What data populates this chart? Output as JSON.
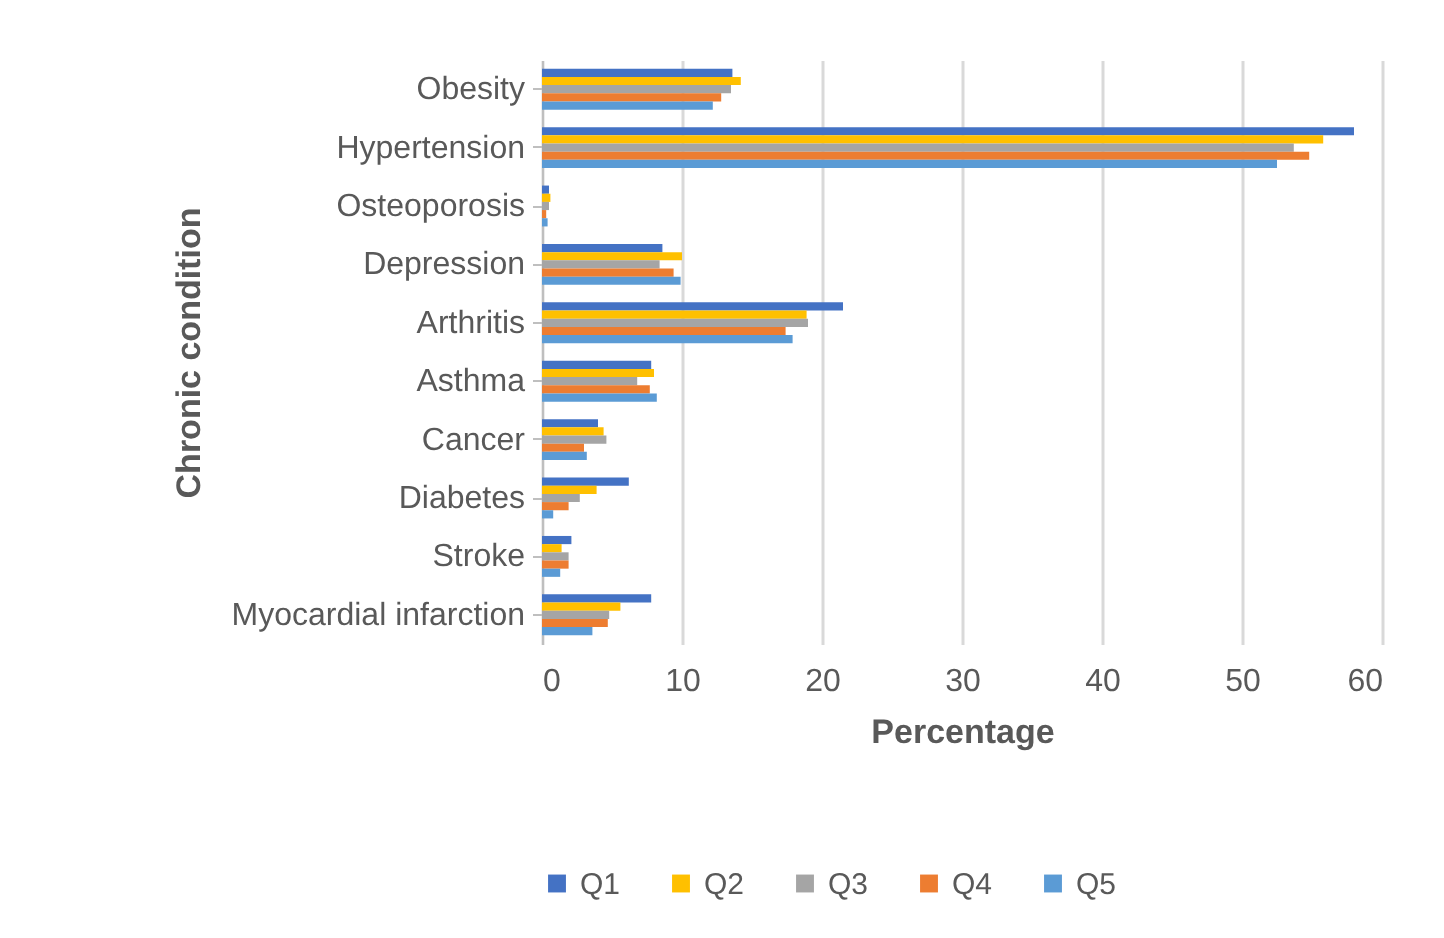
{
  "chart_data": {
    "type": "bar",
    "orientation": "horizontal",
    "xlabel": "Percentage",
    "ylabel": "Chronic condition",
    "categories": [
      "Obesity",
      "Hypertension",
      "Osteoporosis",
      "Depression",
      "Arthritis",
      "Asthma",
      "Cancer",
      "Diabetes",
      "Stroke",
      "Myocardial infarction"
    ],
    "series": [
      {
        "name": "Q1",
        "color": "#4472c4",
        "values": [
          13.6,
          58.0,
          0.5,
          8.6,
          21.5,
          7.8,
          4.0,
          6.2,
          2.1,
          7.8
        ]
      },
      {
        "name": "Q2",
        "color": "#ffc000",
        "values": [
          14.2,
          55.8,
          0.6,
          10.0,
          18.9,
          8.0,
          4.4,
          3.9,
          1.4,
          5.6
        ]
      },
      {
        "name": "Q3",
        "color": "#a5a5a5",
        "values": [
          13.5,
          53.7,
          0.5,
          8.4,
          19.0,
          6.8,
          4.6,
          2.7,
          1.9,
          4.8
        ]
      },
      {
        "name": "Q4",
        "color": "#ed7d31",
        "values": [
          12.8,
          54.8,
          0.3,
          9.4,
          17.4,
          7.7,
          3.0,
          1.9,
          1.9,
          4.7
        ]
      },
      {
        "name": "Q5",
        "color": "#5b9bd5",
        "values": [
          12.2,
          52.5,
          0.4,
          9.9,
          17.9,
          8.2,
          3.2,
          0.8,
          1.3,
          3.6
        ]
      }
    ],
    "xlim": [
      0,
      60
    ],
    "xticks": [
      0,
      10,
      20,
      30,
      40,
      50,
      60
    ],
    "grid": "x",
    "legend": "bottom"
  }
}
